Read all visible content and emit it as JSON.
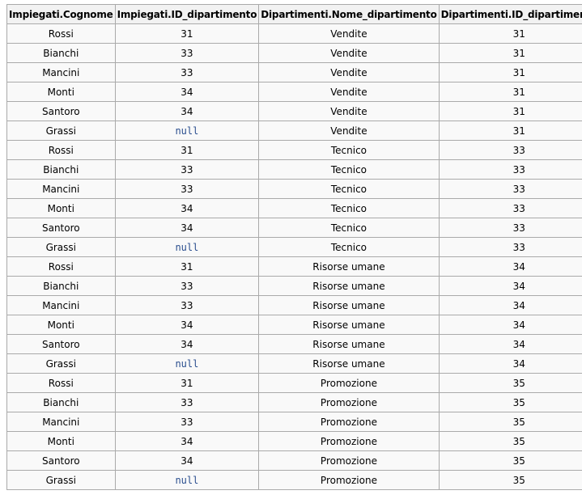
{
  "table": {
    "headers": [
      "Impiegati.Cognome",
      "Impiegati.ID_dipartimento",
      "Dipartimenti.Nome_dipartimento",
      "Dipartimenti.ID_dipartimento"
    ],
    "rows": [
      [
        "Rossi",
        "31",
        "Vendite",
        "31"
      ],
      [
        "Bianchi",
        "33",
        "Vendite",
        "31"
      ],
      [
        "Mancini",
        "33",
        "Vendite",
        "31"
      ],
      [
        "Monti",
        "34",
        "Vendite",
        "31"
      ],
      [
        "Santoro",
        "34",
        "Vendite",
        "31"
      ],
      [
        "Grassi",
        "null",
        "Vendite",
        "31"
      ],
      [
        "Rossi",
        "31",
        "Tecnico",
        "33"
      ],
      [
        "Bianchi",
        "33",
        "Tecnico",
        "33"
      ],
      [
        "Mancini",
        "33",
        "Tecnico",
        "33"
      ],
      [
        "Monti",
        "34",
        "Tecnico",
        "33"
      ],
      [
        "Santoro",
        "34",
        "Tecnico",
        "33"
      ],
      [
        "Grassi",
        "null",
        "Tecnico",
        "33"
      ],
      [
        "Rossi",
        "31",
        "Risorse umane",
        "34"
      ],
      [
        "Bianchi",
        "33",
        "Risorse umane",
        "34"
      ],
      [
        "Mancini",
        "33",
        "Risorse umane",
        "34"
      ],
      [
        "Monti",
        "34",
        "Risorse umane",
        "34"
      ],
      [
        "Santoro",
        "34",
        "Risorse umane",
        "34"
      ],
      [
        "Grassi",
        "null",
        "Risorse umane",
        "34"
      ],
      [
        "Rossi",
        "31",
        "Promozione",
        "35"
      ],
      [
        "Bianchi",
        "33",
        "Promozione",
        "35"
      ],
      [
        "Mancini",
        "33",
        "Promozione",
        "35"
      ],
      [
        "Monti",
        "34",
        "Promozione",
        "35"
      ],
      [
        "Santoro",
        "34",
        "Promozione",
        "35"
      ],
      [
        "Grassi",
        "null",
        "Promozione",
        "35"
      ]
    ],
    "null_token": "null",
    "colors": {
      "border": "#aaaaaa",
      "header_bg": "#f2f2f2",
      "cell_bg": "#f9f9f9",
      "null_text": "#2b4f8f"
    }
  }
}
